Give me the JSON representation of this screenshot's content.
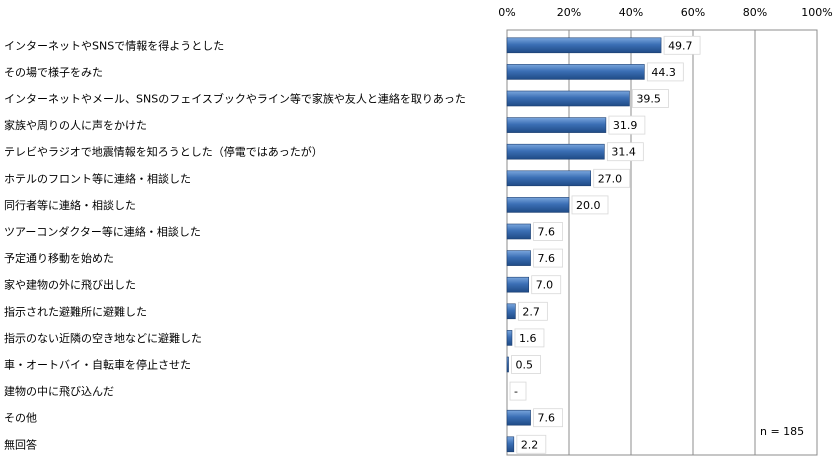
{
  "chart_data": {
    "type": "bar",
    "orientation": "horizontal",
    "title": "",
    "xlabel": "",
    "ylabel": "",
    "xlim": [
      0,
      100
    ],
    "x_tick_labels": [
      "0%",
      "20%",
      "40%",
      "60%",
      "80%",
      "100%"
    ],
    "x_ticks": [
      0,
      20,
      40,
      60,
      80,
      100
    ],
    "grid": true,
    "legend": "none",
    "bar_color": "#2e5c9a",
    "categories": [
      "インターネットやSNSで情報を得ようとした",
      "その場で様子をみた",
      "インターネットやメール、SNSのフェイスブックやライン等で家族や友人と連絡を取りあった",
      "家族や周りの人に声をかけた",
      "テレビやラジオで地震情報を知ろうとした（停電ではあったが）",
      "ホテルのフロント等に連絡・相談した",
      "同行者等に連絡・相談した",
      "ツアーコンダクター等に連絡・相談した",
      "予定通り移動を始めた",
      "家や建物の外に飛び出した",
      "指示された避難所に避難した",
      "指示のない近隣の空き地などに避難した",
      "車・オートバイ・自転車を停止させた",
      "建物の中に飛び込んだ",
      "その他",
      "無回答"
    ],
    "values": [
      49.7,
      44.3,
      39.5,
      31.9,
      31.4,
      27.0,
      20.0,
      7.6,
      7.6,
      7.0,
      2.7,
      1.6,
      0.5,
      0,
      7.6,
      2.2
    ],
    "data_labels": [
      "49.7",
      "44.3",
      "39.5",
      "31.9",
      "31.4",
      "27.0",
      "20.0",
      "7.6",
      "7.6",
      "7.0",
      "2.7",
      "1.6",
      "0.5",
      "-",
      "7.6",
      "2.2"
    ],
    "annotation": "n = 185"
  }
}
